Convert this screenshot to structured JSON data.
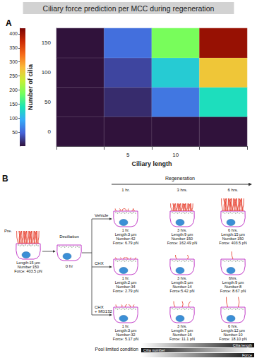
{
  "chart_data": {
    "type": "heatmap",
    "panel_label": "A",
    "title": "Ciliary force prediction per MCC during regeneration",
    "x_label": "Ciliary length",
    "y_label": "Number of cilia",
    "categories": [
      null,
      "5",
      "10",
      null
    ],
    "y_categories": [
      "0",
      "50",
      "100",
      "150"
    ],
    "cells": [
      [
        0,
        0,
        0,
        0
      ],
      [
        0,
        15,
        60,
        135
      ],
      [
        0,
        30,
        120,
        270
      ],
      [
        0,
        55,
        190,
        403.5
      ]
    ],
    "cbar_range": [
      0,
      420
    ],
    "cbar_ticks": [
      50,
      100,
      150,
      200,
      250,
      300,
      350,
      400
    ]
  },
  "diagram": {
    "panel_label": "B",
    "regeneration": "Regeneration",
    "times": [
      "1 hr.",
      "3 hrs.",
      "6 hrs."
    ],
    "deciliation": "Deciliation",
    "pre": {
      "label": "Pre.",
      "lines": [
        "Length:15 µm",
        "Number:150",
        "Force: 403.5 pN"
      ]
    },
    "zero": "0 hr",
    "conditions": [
      {
        "name": [
          "Vehicle"
        ],
        "cells": [
          {
            "time": "1 hr.",
            "lines": [
              "Length:3 µm",
              "Number:42",
              "Force: 6.79 pN"
            ]
          },
          {
            "time": "3 hrs.",
            "lines": [
              "Length:9 µm",
              "Number:150",
              "Force: 162.49 pN"
            ]
          },
          {
            "time": "6 hrs.",
            "lines": [
              "Length:15 µm",
              "Number:150",
              "Force: 403.5 pN"
            ]
          }
        ]
      },
      {
        "name": [
          "CHX"
        ],
        "cells": [
          {
            "time": "1 hr.",
            "lines": [
              "Length:2 µm",
              "Number:34",
              "Force: 2.79 pN"
            ]
          },
          {
            "time": "3 hrs.",
            "lines": [
              "Length:5 µm",
              "Number:14",
              "Force:5.42 pN"
            ]
          },
          {
            "time": "6hrs.",
            "lines": [
              "Length:9 µm",
              "Number:8",
              "Force: 8.67 pN"
            ]
          }
        ]
      },
      {
        "name": [
          "CHX",
          "+ MG132"
        ],
        "cells": [
          {
            "time": "1 hr.",
            "lines": [
              "Length:3 µm",
              "Number:32",
              "Force: 5.17 pN"
            ]
          },
          {
            "time": "3 hrs.",
            "lines": [
              "Length:7 µm",
              "Number:16",
              "Force: 11.1 pN"
            ]
          },
          {
            "time": "6 hrs.",
            "lines": [
              "Length:12 µm",
              "Number:10",
              "Force: 18.10 pN"
            ]
          }
        ]
      }
    ],
    "pool": {
      "title": "Pool limited condition",
      "length": "Cilia length",
      "number": "Cilia number",
      "force": "Force"
    }
  }
}
